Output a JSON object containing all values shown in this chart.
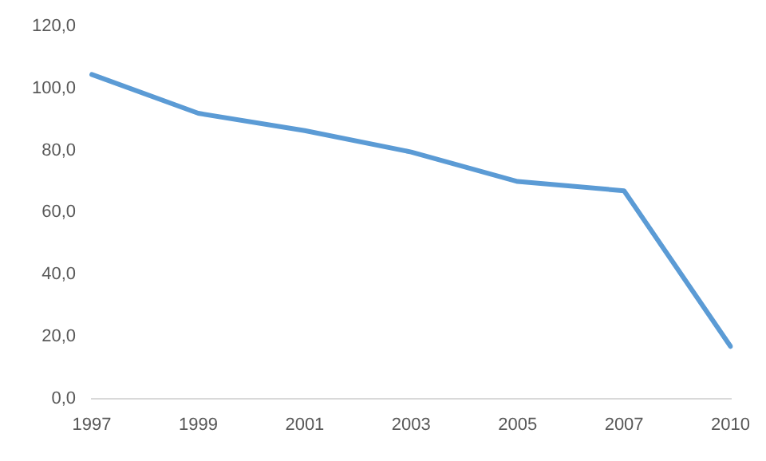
{
  "chart_data": {
    "type": "line",
    "categories": [
      "1997",
      "1999",
      "2001",
      "2003",
      "2005",
      "2007",
      "2010"
    ],
    "series": [
      {
        "color": "#5b9bd5",
        "values": [
          104.5,
          92,
          86.4,
          79.5,
          70,
          67,
          16.8
        ]
      }
    ],
    "ylim": [
      0,
      120
    ],
    "yticks": [
      {
        "value": 0,
        "label": "0,0"
      },
      {
        "value": 20,
        "label": "20,0"
      },
      {
        "value": 40,
        "label": "40,0"
      },
      {
        "value": 60,
        "label": "60,0"
      },
      {
        "value": 80,
        "label": "80,0"
      },
      {
        "value": 100,
        "label": "100,0"
      },
      {
        "value": 120,
        "label": "120,0"
      }
    ],
    "grid": false,
    "legend": false,
    "marker": "none",
    "line_style": "solid"
  }
}
